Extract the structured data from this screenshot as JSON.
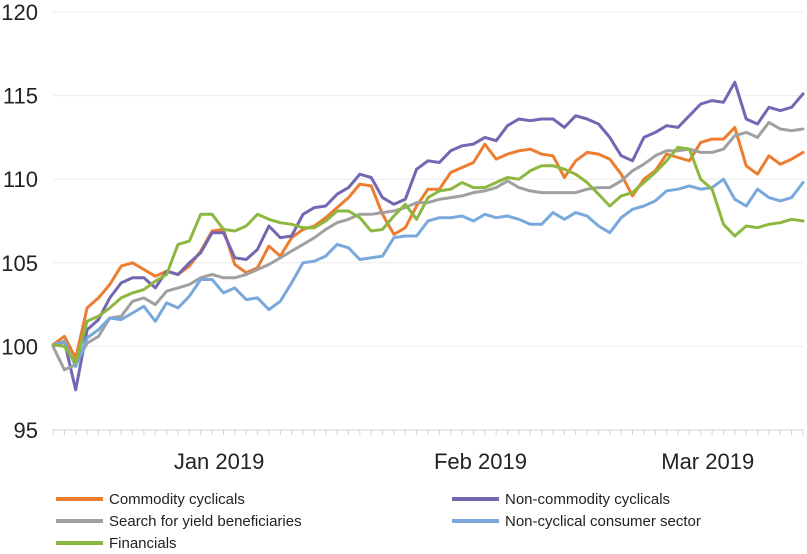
{
  "chart_data": {
    "type": "line",
    "title": "",
    "xlabel": "",
    "ylabel": "",
    "ylim": [
      95,
      120
    ],
    "yticks": [
      95,
      100,
      105,
      110,
      115,
      120
    ],
    "xticks": [
      {
        "label": "Jan 2019",
        "index": 14
      },
      {
        "label": "Feb 2019",
        "index": 37
      },
      {
        "label": "Mar 2019",
        "index": 57
      }
    ],
    "n_points": 67,
    "grid": "horizontal",
    "legend_position": "bottom",
    "series": [
      {
        "name": "Commodity cyclicals",
        "color": "#ED7D31",
        "values": [
          100.1,
          100.6,
          99.3,
          102.3,
          102.9,
          103.7,
          104.8,
          105.0,
          104.6,
          104.2,
          104.5,
          104.3,
          104.8,
          105.7,
          106.9,
          107.0,
          104.9,
          104.4,
          104.7,
          106.0,
          105.4,
          106.5,
          107.0,
          107.2,
          107.7,
          108.3,
          108.9,
          109.7,
          109.6,
          107.9,
          106.7,
          107.1,
          108.4,
          109.4,
          109.4,
          110.4,
          110.7,
          111.0,
          112.1,
          111.2,
          111.5,
          111.7,
          111.8,
          111.5,
          111.4,
          110.1,
          111.1,
          111.6,
          111.5,
          111.2,
          110.3,
          109.0,
          110.0,
          110.5,
          111.5,
          111.3,
          111.1,
          112.2,
          112.4,
          112.4,
          113.1,
          110.8,
          110.3,
          111.4,
          110.9,
          111.2,
          111.6
        ]
      },
      {
        "name": "Non-commodity cyclicals",
        "color": "#7466B3",
        "values": [
          100.0,
          100.3,
          97.4,
          101.0,
          101.6,
          102.9,
          103.8,
          104.1,
          104.1,
          103.5,
          104.5,
          104.3,
          105.0,
          105.6,
          106.8,
          106.8,
          105.3,
          105.2,
          105.8,
          107.2,
          106.5,
          106.6,
          107.9,
          108.3,
          108.4,
          109.1,
          109.5,
          110.3,
          110.1,
          108.9,
          108.5,
          108.8,
          110.6,
          111.1,
          111.0,
          111.7,
          112.0,
          112.1,
          112.5,
          112.3,
          113.2,
          113.6,
          113.5,
          113.6,
          113.6,
          113.1,
          113.8,
          113.6,
          113.3,
          112.5,
          111.4,
          111.1,
          112.5,
          112.8,
          113.2,
          113.1,
          113.8,
          114.5,
          114.7,
          114.6,
          115.8,
          113.6,
          113.3,
          114.3,
          114.1,
          114.3,
          115.1
        ]
      },
      {
        "name": "Search for yield beneficiaries",
        "color": "#A0A0A0",
        "values": [
          100.0,
          98.6,
          98.9,
          100.2,
          100.6,
          101.7,
          101.8,
          102.7,
          102.9,
          102.5,
          103.3,
          103.5,
          103.7,
          104.1,
          104.3,
          104.1,
          104.1,
          104.3,
          104.6,
          104.9,
          105.3,
          105.7,
          106.1,
          106.5,
          107.0,
          107.4,
          107.6,
          107.9,
          107.9,
          108.0,
          108.1,
          108.3,
          108.6,
          108.6,
          108.8,
          108.9,
          109.0,
          109.2,
          109.3,
          109.5,
          109.9,
          109.5,
          109.3,
          109.2,
          109.2,
          109.2,
          109.2,
          109.4,
          109.5,
          109.5,
          109.9,
          110.5,
          110.9,
          111.4,
          111.7,
          111.7,
          111.8,
          111.6,
          111.6,
          111.8,
          112.6,
          112.8,
          112.5,
          113.4,
          113.0,
          112.9,
          113.0
        ]
      },
      {
        "name": "Non-cyclical consumer sector",
        "color": "#79A8DC",
        "values": [
          100.1,
          100.3,
          98.8,
          100.5,
          101.0,
          101.7,
          101.6,
          102.0,
          102.4,
          101.5,
          102.6,
          102.3,
          103.0,
          104.0,
          104.0,
          103.2,
          103.5,
          102.8,
          102.9,
          102.2,
          102.7,
          103.8,
          105.0,
          105.1,
          105.4,
          106.1,
          105.9,
          105.2,
          105.3,
          105.4,
          106.5,
          106.6,
          106.6,
          107.5,
          107.7,
          107.7,
          107.8,
          107.5,
          107.9,
          107.7,
          107.8,
          107.6,
          107.3,
          107.3,
          108.0,
          107.6,
          108.0,
          107.8,
          107.2,
          106.8,
          107.7,
          108.2,
          108.4,
          108.7,
          109.3,
          109.4,
          109.6,
          109.4,
          109.5,
          110.0,
          108.8,
          108.4,
          109.4,
          108.9,
          108.7,
          108.9,
          109.8
        ]
      },
      {
        "name": "Financials",
        "color": "#8DB840",
        "values": [
          100.1,
          100.0,
          99.0,
          101.5,
          101.8,
          102.3,
          102.9,
          103.2,
          103.4,
          103.9,
          104.3,
          106.1,
          106.3,
          107.9,
          107.9,
          107.0,
          106.9,
          107.2,
          107.9,
          107.6,
          107.4,
          107.3,
          107.1,
          107.1,
          107.5,
          108.1,
          108.1,
          107.7,
          106.9,
          107.0,
          107.8,
          108.5,
          107.6,
          108.9,
          109.3,
          109.4,
          109.8,
          109.5,
          109.5,
          109.8,
          110.1,
          110.0,
          110.5,
          110.8,
          110.8,
          110.6,
          110.3,
          109.8,
          109.1,
          108.4,
          109.0,
          109.2,
          109.8,
          110.4,
          111.1,
          111.9,
          111.8,
          110.0,
          109.4,
          107.3,
          106.6,
          107.2,
          107.1,
          107.3,
          107.4,
          107.6,
          107.5
        ]
      }
    ]
  }
}
